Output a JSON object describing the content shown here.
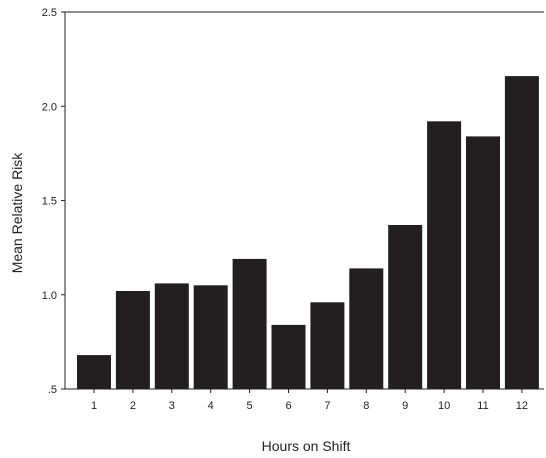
{
  "chart_data": {
    "type": "bar",
    "xlabel": "Hours on Shift",
    "ylabel": "Mean Relative Risk",
    "categories": [
      "1",
      "2",
      "3",
      "4",
      "5",
      "6",
      "7",
      "8",
      "9",
      "10",
      "11",
      "12"
    ],
    "values": [
      0.68,
      1.02,
      1.06,
      1.05,
      1.19,
      0.84,
      0.96,
      1.14,
      1.37,
      1.92,
      1.84,
      2.16
    ],
    "ylim": [
      0.5,
      2.5
    ],
    "yticks": [
      {
        "value": 0.5,
        "label": ".5"
      },
      {
        "value": 1.0,
        "label": "1.0"
      },
      {
        "value": 1.5,
        "label": "1.5"
      },
      {
        "value": 2.0,
        "label": "2.0"
      },
      {
        "value": 2.5,
        "label": "2.5"
      }
    ],
    "grid": false,
    "bar_color": "#231f20"
  }
}
